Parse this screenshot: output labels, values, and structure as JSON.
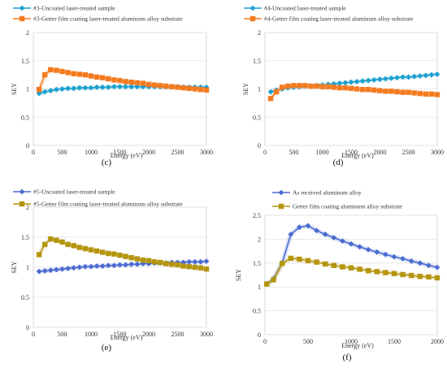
{
  "chart_data": [
    {
      "caption": "(c)",
      "type": "line",
      "xlabel": "Energy (eV)",
      "ylabel": "SEY",
      "xlim": [
        0,
        3000
      ],
      "ylim": [
        0,
        2
      ],
      "xticks": [
        "0",
        "500",
        "1000",
        "1500",
        "2000",
        "2500",
        "3000"
      ],
      "yticks": [
        "0",
        "0.5",
        "1",
        "1.5",
        "2"
      ],
      "legend_position": "top",
      "series": [
        {
          "name": "#3-Uncoated laser-treated sample",
          "color": "#1b9fcf",
          "marker": "diamond",
          "x": [
            100,
            200,
            300,
            400,
            500,
            600,
            700,
            800,
            900,
            1000,
            1100,
            1200,
            1300,
            1400,
            1500,
            1600,
            1700,
            1800,
            1900,
            2000,
            2100,
            2200,
            2300,
            2400,
            2500,
            2600,
            2700,
            2800,
            2900,
            3000
          ],
          "y": [
            0.92,
            0.95,
            0.97,
            0.99,
            1.0,
            1.01,
            1.01,
            1.02,
            1.02,
            1.02,
            1.03,
            1.03,
            1.03,
            1.04,
            1.04,
            1.04,
            1.04,
            1.04,
            1.04,
            1.04,
            1.04,
            1.04,
            1.04,
            1.04,
            1.04,
            1.03,
            1.03,
            1.03,
            1.03,
            1.03
          ]
        },
        {
          "name": "#3-Getter film coating laser-treated aluminum alloy substrate",
          "color": "#f47b20",
          "marker": "square",
          "x": [
            100,
            200,
            300,
            400,
            500,
            600,
            700,
            800,
            900,
            1000,
            1100,
            1200,
            1300,
            1400,
            1500,
            1600,
            1700,
            1800,
            1900,
            2000,
            2100,
            2200,
            2300,
            2400,
            2500,
            2600,
            2700,
            2800,
            2900,
            3000
          ],
          "y": [
            0.99,
            1.25,
            1.34,
            1.33,
            1.31,
            1.29,
            1.27,
            1.26,
            1.25,
            1.23,
            1.21,
            1.2,
            1.18,
            1.16,
            1.15,
            1.13,
            1.12,
            1.11,
            1.1,
            1.08,
            1.07,
            1.06,
            1.05,
            1.04,
            1.03,
            1.02,
            1.01,
            1.0,
            0.99,
            0.98
          ]
        }
      ]
    },
    {
      "caption": "(d)",
      "type": "line",
      "xlabel": "Energy (eV)",
      "ylabel": "SEY",
      "xlim": [
        0,
        3000
      ],
      "ylim": [
        0,
        2
      ],
      "xticks": [
        "0",
        "500",
        "1000",
        "1500",
        "2000",
        "2500",
        "3000"
      ],
      "yticks": [
        "0",
        "0.5",
        "1",
        "1.5",
        "2"
      ],
      "legend_position": "top",
      "series": [
        {
          "name": "#4-Uncoated laser-treated sample",
          "color": "#1b9fcf",
          "marker": "diamond",
          "x": [
            100,
            200,
            300,
            400,
            500,
            600,
            700,
            800,
            900,
            1000,
            1100,
            1200,
            1300,
            1400,
            1500,
            1600,
            1700,
            1800,
            1900,
            2000,
            2100,
            2200,
            2300,
            2400,
            2500,
            2600,
            2700,
            2800,
            2900,
            3000
          ],
          "y": [
            0.95,
            0.98,
            1.0,
            1.02,
            1.03,
            1.04,
            1.05,
            1.05,
            1.06,
            1.07,
            1.08,
            1.09,
            1.1,
            1.11,
            1.12,
            1.13,
            1.14,
            1.15,
            1.16,
            1.17,
            1.18,
            1.19,
            1.2,
            1.21,
            1.21,
            1.22,
            1.23,
            1.24,
            1.25,
            1.26
          ]
        },
        {
          "name": "#4-Getter film coating laser-treated aluminum alloy substrate",
          "color": "#f47b20",
          "marker": "square",
          "x": [
            100,
            200,
            300,
            400,
            500,
            600,
            700,
            800,
            900,
            1000,
            1100,
            1200,
            1300,
            1400,
            1500,
            1600,
            1700,
            1800,
            1900,
            2000,
            2100,
            2200,
            2300,
            2400,
            2500,
            2600,
            2700,
            2800,
            2900,
            3000
          ],
          "y": [
            0.83,
            0.95,
            1.03,
            1.05,
            1.06,
            1.06,
            1.06,
            1.05,
            1.05,
            1.04,
            1.04,
            1.03,
            1.02,
            1.02,
            1.01,
            1.0,
            0.99,
            0.99,
            0.98,
            0.97,
            0.96,
            0.96,
            0.95,
            0.94,
            0.94,
            0.93,
            0.92,
            0.91,
            0.91,
            0.9
          ]
        }
      ]
    },
    {
      "caption": "(e)",
      "type": "line",
      "xlabel": "Energy (eV)",
      "ylabel": "SEY",
      "xlim": [
        0,
        3000
      ],
      "ylim": [
        0,
        2
      ],
      "xticks": [
        "0",
        "500",
        "1000",
        "1500",
        "2000",
        "2500",
        "3000"
      ],
      "yticks": [
        "0",
        "0.5",
        "1",
        "1.5",
        "2"
      ],
      "legend_position": "top",
      "series": [
        {
          "name": "#5-Uncoated laser-treated sample",
          "color": "#4a6ad0",
          "marker": "diamond",
          "x": [
            100,
            200,
            300,
            400,
            500,
            600,
            700,
            800,
            900,
            1000,
            1100,
            1200,
            1300,
            1400,
            1500,
            1600,
            1700,
            1800,
            1900,
            2000,
            2100,
            2200,
            2300,
            2400,
            2500,
            2600,
            2700,
            2800,
            2900,
            3000
          ],
          "y": [
            0.93,
            0.94,
            0.95,
            0.96,
            0.97,
            0.98,
            0.99,
            1.0,
            1.01,
            1.01,
            1.02,
            1.02,
            1.03,
            1.03,
            1.04,
            1.04,
            1.05,
            1.05,
            1.06,
            1.06,
            1.07,
            1.07,
            1.07,
            1.08,
            1.08,
            1.08,
            1.09,
            1.09,
            1.09,
            1.1
          ]
        },
        {
          "name": "#5-Getter film coating laser-treated aluminum alloy substrate",
          "color": "#b5950e",
          "marker": "square",
          "x": [
            100,
            200,
            300,
            400,
            500,
            600,
            700,
            800,
            900,
            1000,
            1100,
            1200,
            1300,
            1400,
            1500,
            1600,
            1700,
            1800,
            1900,
            2000,
            2100,
            2200,
            2300,
            2400,
            2500,
            2600,
            2700,
            2800,
            2900,
            3000
          ],
          "y": [
            1.21,
            1.38,
            1.47,
            1.45,
            1.42,
            1.38,
            1.36,
            1.33,
            1.31,
            1.29,
            1.27,
            1.25,
            1.23,
            1.22,
            1.2,
            1.18,
            1.16,
            1.14,
            1.12,
            1.11,
            1.09,
            1.08,
            1.06,
            1.05,
            1.04,
            1.02,
            1.01,
            1.0,
            0.99,
            0.97
          ]
        }
      ]
    },
    {
      "caption": "(f)",
      "type": "line",
      "xlabel": "Energy (eV)",
      "ylabel": "SEY",
      "xlim": [
        0,
        2000
      ],
      "ylim": [
        0,
        2.5
      ],
      "xticks": [
        "0",
        "500",
        "1000",
        "1500",
        "2000"
      ],
      "yticks": [
        "0",
        "0.5",
        "1",
        "1.5",
        "2",
        "2.5"
      ],
      "legend_position": "top",
      "series": [
        {
          "name": "As received aluminum alloy",
          "color": "#4a6ad0",
          "marker": "diamond",
          "x": [
            20,
            100,
            200,
            300,
            400,
            500,
            600,
            700,
            800,
            900,
            1000,
            1100,
            1200,
            1300,
            1400,
            1500,
            1600,
            1700,
            1800,
            1900,
            2000
          ],
          "y": [
            1.06,
            1.17,
            1.5,
            2.1,
            2.25,
            2.28,
            2.18,
            2.1,
            2.03,
            1.96,
            1.9,
            1.84,
            1.78,
            1.73,
            1.68,
            1.63,
            1.59,
            1.54,
            1.5,
            1.45,
            1.41
          ]
        },
        {
          "name": "Getter film coating aluminum alloy substrate",
          "color": "#b5950e",
          "marker": "square",
          "x": [
            20,
            100,
            200,
            300,
            400,
            500,
            600,
            700,
            800,
            900,
            1000,
            1100,
            1200,
            1300,
            1400,
            1500,
            1600,
            1700,
            1800,
            1900,
            2000
          ],
          "y": [
            1.06,
            1.15,
            1.49,
            1.6,
            1.58,
            1.55,
            1.52,
            1.48,
            1.45,
            1.42,
            1.4,
            1.37,
            1.34,
            1.32,
            1.3,
            1.28,
            1.26,
            1.24,
            1.22,
            1.21,
            1.19
          ]
        }
      ]
    }
  ]
}
